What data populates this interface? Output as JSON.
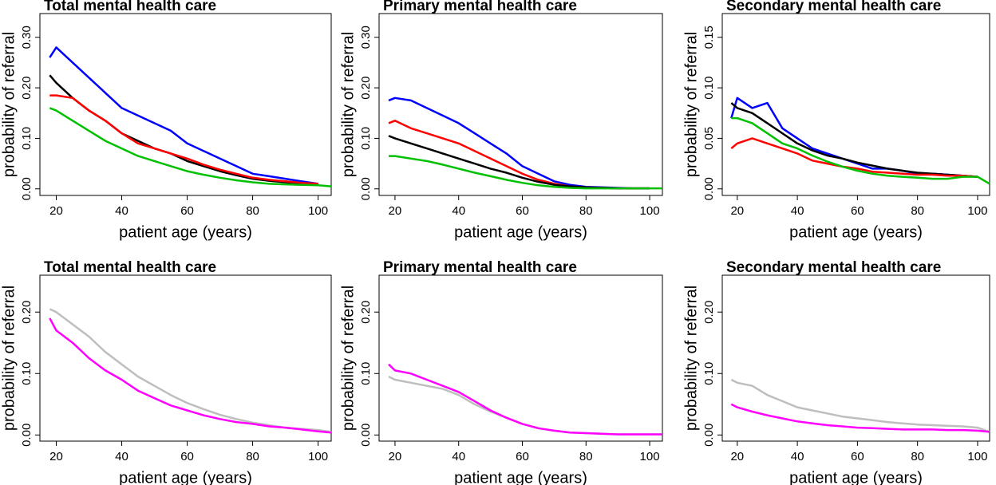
{
  "chart_data": [
    {
      "type": "line",
      "title": "Total mental health care",
      "x_label": "patient age (years)",
      "y_label": "probability of referral",
      "x": [
        18,
        20,
        25,
        30,
        35,
        40,
        45,
        50,
        55,
        60,
        65,
        70,
        75,
        80,
        85,
        90,
        95,
        100,
        104
      ],
      "xlim": [
        15,
        104
      ],
      "ylim": [
        -0.013,
        0.347
      ],
      "xticks": [
        20,
        40,
        60,
        80,
        100
      ],
      "yticks": [
        {
          "value": 0,
          "label": "0.00"
        },
        {
          "value": 0.1,
          "label": "0.10"
        },
        {
          "value": 0.2,
          "label": "0.20"
        },
        {
          "value": 0.3,
          "label": "0.30"
        }
      ],
      "series": [
        {
          "color": "#0000ff",
          "values": [
            0.26,
            0.28,
            0.25,
            0.22,
            0.19,
            0.16,
            0.145,
            0.13,
            0.115,
            0.09,
            0.075,
            0.06,
            0.045,
            0.03,
            0.025,
            0.02,
            0.015,
            0.01,
            null
          ]
        },
        {
          "color": "#000000",
          "values": [
            0.225,
            0.21,
            0.18,
            0.155,
            0.135,
            0.11,
            0.095,
            0.08,
            0.07,
            0.055,
            0.045,
            0.035,
            0.027,
            0.02,
            0.016,
            0.013,
            0.011,
            0.01,
            null
          ]
        },
        {
          "color": "#ff0000",
          "values": [
            0.185,
            0.185,
            0.18,
            0.155,
            0.135,
            0.11,
            0.09,
            0.08,
            0.07,
            0.06,
            0.048,
            0.038,
            0.03,
            0.022,
            0.018,
            0.015,
            0.012,
            0.01,
            null
          ]
        },
        {
          "color": "#00c000",
          "values": [
            0.16,
            0.155,
            0.135,
            0.115,
            0.095,
            0.08,
            0.065,
            0.055,
            0.045,
            0.035,
            0.028,
            0.022,
            0.017,
            0.013,
            0.01,
            0.009,
            0.008,
            0.007,
            0.005
          ]
        }
      ]
    },
    {
      "type": "line",
      "title": "Primary mental health care",
      "x_label": "patient age (years)",
      "y_label": "probability of referral",
      "x": [
        18,
        20,
        25,
        30,
        35,
        40,
        45,
        50,
        55,
        60,
        65,
        70,
        75,
        80,
        85,
        90,
        95,
        100,
        104
      ],
      "xlim": [
        15,
        104
      ],
      "ylim": [
        -0.013,
        0.347
      ],
      "xticks": [
        20,
        40,
        60,
        80,
        100
      ],
      "yticks": [
        {
          "value": 0,
          "label": "0.00"
        },
        {
          "value": 0.1,
          "label": "0.10"
        },
        {
          "value": 0.2,
          "label": "0.20"
        },
        {
          "value": 0.3,
          "label": "0.30"
        }
      ],
      "series": [
        {
          "color": "#0000ff",
          "values": [
            0.175,
            0.18,
            0.175,
            0.16,
            0.145,
            0.13,
            0.11,
            0.09,
            0.07,
            0.045,
            0.03,
            0.015,
            0.008,
            0.004,
            0.003,
            0.002,
            0.001,
            0.001,
            null
          ]
        },
        {
          "color": "#ff0000",
          "values": [
            0.13,
            0.135,
            0.12,
            0.11,
            0.1,
            0.09,
            0.075,
            0.06,
            0.045,
            0.03,
            0.018,
            0.01,
            0.005,
            0.003,
            0.002,
            0.001,
            0.001,
            0.001,
            null
          ]
        },
        {
          "color": "#000000",
          "values": [
            0.105,
            0.1,
            0.09,
            0.08,
            0.07,
            0.06,
            0.05,
            0.04,
            0.032,
            0.022,
            0.014,
            0.008,
            0.005,
            0.003,
            0.002,
            0.001,
            0.001,
            0.001,
            null
          ]
        },
        {
          "color": "#00c000",
          "values": [
            0.065,
            0.065,
            0.06,
            0.055,
            0.048,
            0.04,
            0.032,
            0.025,
            0.018,
            0.012,
            0.007,
            0.004,
            0.002,
            0.001,
            0.001,
            0.001,
            0.001,
            0.001,
            0.001
          ]
        }
      ]
    },
    {
      "type": "line",
      "title": "Secondary mental health care",
      "x_label": "patient age (years)",
      "y_label": "probability of referral",
      "x": [
        18,
        20,
        25,
        30,
        35,
        40,
        45,
        50,
        55,
        60,
        65,
        70,
        75,
        80,
        85,
        90,
        95,
        100,
        104
      ],
      "xlim": [
        15,
        104
      ],
      "ylim": [
        -0.0065,
        0.1735
      ],
      "xticks": [
        20,
        40,
        60,
        80,
        100
      ],
      "yticks": [
        {
          "value": 0,
          "label": "0.00"
        },
        {
          "value": 0.05,
          "label": "0.05"
        },
        {
          "value": 0.1,
          "label": "0.10"
        },
        {
          "value": 0.15,
          "label": "0.15"
        }
      ],
      "series": [
        {
          "color": "#0000ff",
          "values": [
            0.07,
            0.09,
            0.08,
            0.085,
            0.06,
            0.05,
            0.04,
            0.035,
            0.03,
            0.025,
            0.02,
            0.02,
            0.018,
            0.015,
            0.015,
            0.014,
            0.013,
            0.012,
            null
          ]
        },
        {
          "color": "#000000",
          "values": [
            0.085,
            0.08,
            0.075,
            0.065,
            0.055,
            0.045,
            0.038,
            0.033,
            0.03,
            0.026,
            0.023,
            0.02,
            0.018,
            0.016,
            0.015,
            0.014,
            0.013,
            0.012,
            null
          ]
        },
        {
          "color": "#ff0000",
          "values": [
            0.04,
            0.045,
            0.05,
            0.045,
            0.04,
            0.035,
            0.028,
            0.025,
            0.022,
            0.02,
            0.017,
            0.016,
            0.015,
            0.014,
            0.014,
            0.013,
            0.013,
            0.012,
            null
          ]
        },
        {
          "color": "#00c000",
          "values": [
            0.07,
            0.07,
            0.065,
            0.055,
            0.045,
            0.04,
            0.033,
            0.027,
            0.022,
            0.018,
            0.015,
            0.013,
            0.012,
            0.011,
            0.01,
            0.01,
            0.012,
            0.012,
            0.005
          ]
        }
      ]
    },
    {
      "type": "line",
      "title": "Total mental health care",
      "x_label": "patient age (years)",
      "y_label": "probability of referral",
      "x": [
        18,
        20,
        25,
        30,
        35,
        40,
        45,
        50,
        55,
        60,
        65,
        70,
        75,
        80,
        85,
        90,
        95,
        100,
        104
      ],
      "xlim": [
        15,
        104
      ],
      "ylim": [
        -0.01,
        0.26
      ],
      "xticks": [
        20,
        40,
        60,
        80,
        100
      ],
      "yticks": [
        {
          "value": 0,
          "label": "0.00"
        },
        {
          "value": 0.1,
          "label": "0.10"
        },
        {
          "value": 0.2,
          "label": "0.20"
        }
      ],
      "series": [
        {
          "color": "#bebebe",
          "values": [
            0.205,
            0.2,
            0.18,
            0.16,
            0.135,
            0.115,
            0.095,
            0.08,
            0.065,
            0.052,
            0.042,
            0.033,
            0.026,
            0.02,
            0.016,
            0.012,
            0.01,
            0.008,
            0.005
          ]
        },
        {
          "color": "#ff00ff",
          "values": [
            0.19,
            0.17,
            0.15,
            0.125,
            0.105,
            0.09,
            0.072,
            0.06,
            0.048,
            0.04,
            0.032,
            0.026,
            0.021,
            0.018,
            0.014,
            0.012,
            0.009,
            0.006,
            0.004
          ]
        }
      ]
    },
    {
      "type": "line",
      "title": "Primary mental health care",
      "x_label": "patient age (years)",
      "y_label": "probability of referral",
      "x": [
        18,
        20,
        25,
        30,
        35,
        40,
        45,
        50,
        55,
        60,
        65,
        70,
        75,
        80,
        85,
        90,
        95,
        100,
        104
      ],
      "xlim": [
        15,
        104
      ],
      "ylim": [
        -0.01,
        0.26
      ],
      "xticks": [
        20,
        40,
        60,
        80,
        100
      ],
      "yticks": [
        {
          "value": 0,
          "label": "0.00"
        },
        {
          "value": 0.1,
          "label": "0.10"
        },
        {
          "value": 0.2,
          "label": "0.20"
        }
      ],
      "series": [
        {
          "color": "#bebebe",
          "values": [
            0.095,
            0.09,
            0.085,
            0.08,
            0.075,
            0.065,
            0.05,
            0.038,
            0.028,
            0.018,
            0.011,
            0.007,
            0.004,
            0.003,
            0.002,
            0.001,
            0.001,
            0.001,
            0.001
          ]
        },
        {
          "color": "#ff00ff",
          "values": [
            0.115,
            0.105,
            0.1,
            0.09,
            0.08,
            0.07,
            0.055,
            0.04,
            0.028,
            0.018,
            0.011,
            0.007,
            0.004,
            0.003,
            0.002,
            0.001,
            0.001,
            0.001,
            0.001
          ]
        }
      ]
    },
    {
      "type": "line",
      "title": "Secondary mental health care",
      "x_label": "patient age (years)",
      "y_label": "probability of referral",
      "x": [
        18,
        20,
        25,
        30,
        35,
        40,
        45,
        50,
        55,
        60,
        65,
        70,
        75,
        80,
        85,
        90,
        95,
        100,
        104
      ],
      "xlim": [
        15,
        104
      ],
      "ylim": [
        -0.01,
        0.26
      ],
      "xticks": [
        20,
        40,
        60,
        80,
        100
      ],
      "yticks": [
        {
          "value": 0,
          "label": "0.00"
        },
        {
          "value": 0.1,
          "label": "0.10"
        },
        {
          "value": 0.2,
          "label": "0.20"
        }
      ],
      "series": [
        {
          "color": "#bebebe",
          "values": [
            0.09,
            0.085,
            0.08,
            0.065,
            0.055,
            0.045,
            0.04,
            0.035,
            0.03,
            0.027,
            0.024,
            0.021,
            0.019,
            0.017,
            0.016,
            0.015,
            0.014,
            0.012,
            0.005
          ]
        },
        {
          "color": "#ff00ff",
          "values": [
            0.05,
            0.045,
            0.038,
            0.032,
            0.027,
            0.022,
            0.019,
            0.016,
            0.014,
            0.012,
            0.011,
            0.01,
            0.009,
            0.009,
            0.009,
            0.008,
            0.008,
            0.007,
            0.005
          ]
        }
      ]
    }
  ]
}
